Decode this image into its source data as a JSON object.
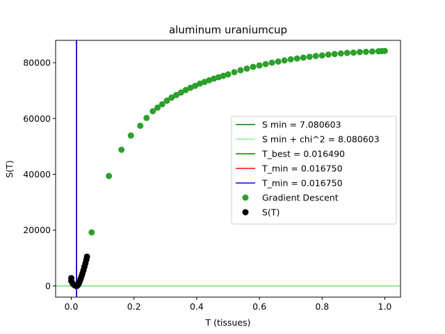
{
  "chart_data": {
    "type": "scatter",
    "title": "aluminum uraniumcup",
    "xlabel": "T (tissues)",
    "ylabel": "S(T)",
    "xlim": [
      -0.05,
      1.05
    ],
    "ylim": [
      -4000,
      88000
    ],
    "xticks": [
      0.0,
      0.2,
      0.4,
      0.6,
      0.8,
      1.0
    ],
    "xtick_labels": [
      "0.0",
      "0.2",
      "0.4",
      "0.6",
      "0.8",
      "1.0"
    ],
    "yticks": [
      0,
      20000,
      40000,
      60000,
      80000
    ],
    "ytick_labels": [
      "0",
      "20000",
      "40000",
      "60000",
      "80000"
    ],
    "grid": false,
    "legend_position": "center-right",
    "lines": [
      {
        "name": "S min = 7.080603",
        "orientation": "horizontal",
        "value": 7.080603,
        "color": "#008000"
      },
      {
        "name": "S min + chi^2 = 8.080603",
        "orientation": "horizontal",
        "value": 8.080603,
        "color": "#90ee90"
      },
      {
        "name": "T_best = 0.016490",
        "orientation": "vertical",
        "value": 0.01649,
        "color": "#008000"
      },
      {
        "name": "T_min = 0.016750",
        "orientation": "vertical",
        "value": 0.01675,
        "color": "#ff0000"
      },
      {
        "name": "T_min = 0.016750",
        "orientation": "vertical",
        "value": 0.01675,
        "color": "#0000ff"
      }
    ],
    "series": [
      {
        "name": "Gradient Descent",
        "color": "#2ca02c",
        "x": [
          0.065,
          0.12,
          0.16,
          0.19,
          0.22,
          0.24,
          0.26,
          0.275,
          0.29,
          0.305,
          0.32,
          0.335,
          0.35,
          0.365,
          0.38,
          0.395,
          0.41,
          0.425,
          0.44,
          0.455,
          0.47,
          0.485,
          0.5,
          0.52,
          0.54,
          0.56,
          0.58,
          0.6,
          0.62,
          0.64,
          0.66,
          0.68,
          0.7,
          0.72,
          0.74,
          0.76,
          0.78,
          0.8,
          0.82,
          0.84,
          0.86,
          0.88,
          0.9,
          0.92,
          0.94,
          0.96,
          0.98,
          0.99,
          1.0
        ],
        "y": [
          19200,
          39400,
          48800,
          53900,
          57400,
          60200,
          62600,
          63900,
          65100,
          66400,
          67500,
          68400,
          69300,
          70200,
          71000,
          71700,
          72500,
          73100,
          73700,
          74300,
          74800,
          75300,
          75800,
          76600,
          77300,
          77900,
          78500,
          79000,
          79500,
          80000,
          80400,
          80800,
          81200,
          81500,
          81800,
          82100,
          82400,
          82600,
          82900,
          83100,
          83300,
          83500,
          83600,
          83800,
          83900,
          84000,
          84100,
          84150,
          84200
        ]
      },
      {
        "name": "S(T)",
        "color": "#000000",
        "x": [
          0.0,
          0.0,
          0.005,
          0.01,
          0.015,
          0.018,
          0.021,
          0.024,
          0.027,
          0.03,
          0.033,
          0.036,
          0.039,
          0.042,
          0.045,
          0.048,
          0.05
        ],
        "y": [
          2800,
          1800,
          800,
          300,
          0,
          0,
          300,
          900,
          1700,
          2600,
          3600,
          4600,
          5700,
          6900,
          8100,
          9400,
          10500
        ]
      }
    ]
  }
}
